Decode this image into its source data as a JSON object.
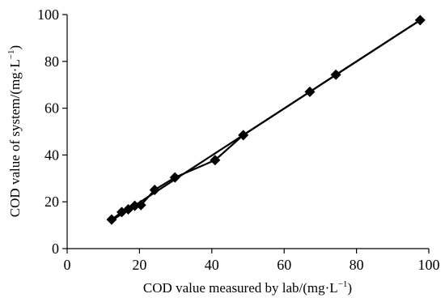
{
  "chart_data": {
    "type": "line",
    "x_axis": {
      "label_main": "COD value measured by lab/(mg·L",
      "label_sup": "−1",
      "label_end": ")",
      "range": [
        0,
        100
      ],
      "ticks": [
        "0",
        "20",
        "40",
        "60",
        "80",
        "100"
      ]
    },
    "y_axis": {
      "label_main": "COD value of system/(mg·L",
      "label_sup": "−1",
      "label_end": ")",
      "range": [
        0,
        100
      ],
      "ticks": [
        "0",
        "20",
        "40",
        "60",
        "80",
        "100"
      ]
    },
    "grid": false,
    "legend": "none",
    "series": [
      {
        "marker": "diamond",
        "color": "#000000",
        "points": [
          {
            "x": 12.3,
            "y": 12.4
          },
          {
            "x": 15.1,
            "y": 15.6
          },
          {
            "x": 16.9,
            "y": 16.8
          },
          {
            "x": 18.7,
            "y": 18.3
          },
          {
            "x": 20.4,
            "y": 18.6
          },
          {
            "x": 24.2,
            "y": 25.1
          },
          {
            "x": 29.8,
            "y": 30.4
          },
          {
            "x": 40.9,
            "y": 37.8
          },
          {
            "x": 48.7,
            "y": 48.5
          },
          {
            "x": 67.1,
            "y": 67.0
          },
          {
            "x": 74.3,
            "y": 74.3
          },
          {
            "x": 97.6,
            "y": 97.6
          }
        ]
      },
      {
        "style": "trend-line",
        "color": "#000000",
        "points": [
          {
            "x": 12.3,
            "y": 12.0
          },
          {
            "x": 97.6,
            "y": 97.6
          }
        ]
      }
    ]
  }
}
